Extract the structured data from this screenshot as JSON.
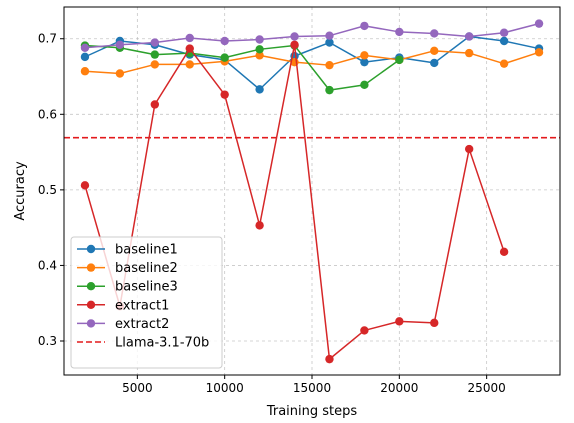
{
  "chart_data": {
    "type": "line",
    "xlabel": "Training steps",
    "ylabel": "Accuracy",
    "xlim": [
      800,
      29200
    ],
    "ylim": [
      0.255,
      0.742
    ],
    "xticks": [
      5000,
      10000,
      15000,
      20000,
      25000
    ],
    "yticks": [
      0.3,
      0.4,
      0.5,
      0.6,
      0.7
    ],
    "grid": true,
    "legend_position": "lower-left",
    "x": [
      2000,
      4000,
      6000,
      8000,
      10000,
      12000,
      14000,
      16000,
      18000,
      20000,
      22000,
      24000,
      26000,
      28000
    ],
    "series": [
      {
        "name": "baseline1",
        "color": "#1f77b4",
        "values": [
          0.676,
          0.697,
          0.692,
          0.679,
          0.672,
          0.633,
          0.677,
          0.695,
          0.669,
          0.675,
          0.668,
          0.703,
          0.697,
          0.687
        ]
      },
      {
        "name": "baseline2",
        "color": "#ff7f0e",
        "values": [
          0.657,
          0.654,
          0.666,
          0.666,
          0.67,
          0.678,
          0.669,
          0.665,
          0.678,
          0.672,
          0.684,
          0.681,
          0.667,
          0.682
        ]
      },
      {
        "name": "baseline3",
        "color": "#2ca02c",
        "values": [
          0.691,
          0.688,
          0.679,
          0.681,
          0.675,
          0.686,
          0.691,
          0.632,
          0.639,
          0.672,
          null,
          null,
          null,
          null
        ]
      },
      {
        "name": "extract1",
        "color": "#d62728",
        "values": [
          0.506,
          0.346,
          0.613,
          0.687,
          0.626,
          0.453,
          0.692,
          0.276,
          0.314,
          0.326,
          0.324,
          0.554,
          0.418,
          null
        ]
      },
      {
        "name": "extract2",
        "color": "#9467bd",
        "values": [
          0.688,
          0.692,
          0.695,
          0.701,
          0.697,
          0.699,
          0.703,
          0.704,
          0.717,
          0.709,
          0.707,
          0.703,
          0.708,
          0.72
        ]
      }
    ],
    "reference_line": {
      "name": "Llama-3.1-70b",
      "color": "#e31a1c",
      "value": 0.569,
      "style": "dashed"
    }
  }
}
